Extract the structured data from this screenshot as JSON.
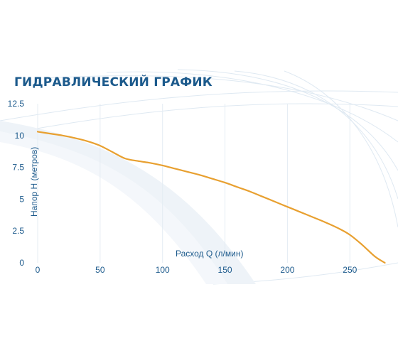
{
  "chart_data": {
    "type": "line",
    "title": "ГИДРАВЛИЧЕСКИЙ ГРАФИК",
    "xlabel": "Расход Q (л/мин)",
    "ylabel": "Напор Н (метров)",
    "xlim": [
      0,
      280
    ],
    "ylim": [
      0,
      12.5
    ],
    "x_ticks": [
      "0",
      "50",
      "100",
      "150",
      "200",
      "250"
    ],
    "y_ticks": [
      "0",
      "2.5",
      "5",
      "7.5",
      "10",
      "12.5"
    ],
    "x_tick_values": [
      0,
      50,
      100,
      150,
      200,
      250
    ],
    "y_tick_values": [
      0,
      2.5,
      5,
      7.5,
      10,
      12.5
    ],
    "grid": "vertical",
    "line_color": "#e8a030",
    "text_color": "#1c5a8c",
    "series": [
      {
        "x": [
          0,
          10,
          20,
          30,
          40,
          50,
          60,
          70,
          80,
          90,
          100,
          110,
          120,
          130,
          140,
          150,
          160,
          170,
          180,
          190,
          200,
          210,
          220,
          230,
          240,
          250,
          260,
          270,
          278
        ],
        "y": [
          10.3,
          10.15,
          10.0,
          9.8,
          9.55,
          9.2,
          8.7,
          8.2,
          8.0,
          7.85,
          7.65,
          7.4,
          7.15,
          6.9,
          6.6,
          6.3,
          5.95,
          5.6,
          5.2,
          4.8,
          4.4,
          4.0,
          3.6,
          3.2,
          2.75,
          2.2,
          1.4,
          0.5,
          0.0
        ]
      }
    ]
  }
}
